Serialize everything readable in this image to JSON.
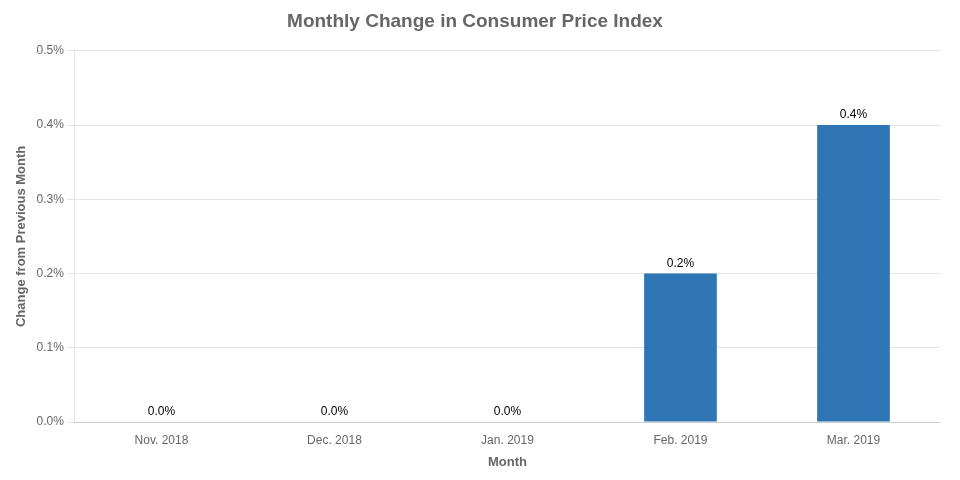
{
  "chart_data": {
    "type": "bar",
    "title": "Monthly Change in Consumer Price Index",
    "xlabel": "Month",
    "ylabel": "Change from Previous Month",
    "categories": [
      "Nov. 2018",
      "Dec. 2018",
      "Jan. 2019",
      "Feb. 2019",
      "Mar. 2019"
    ],
    "values": [
      0.0,
      0.0,
      0.0,
      0.002,
      0.004
    ],
    "value_labels": [
      "0.0%",
      "0.0%",
      "0.0%",
      "0.2%",
      "0.4%"
    ],
    "data_labels": true,
    "color": "#2E75B6",
    "ylim": [
      0,
      0.005
    ],
    "yticks": [
      {
        "value": 0.0,
        "label": "0.0%"
      },
      {
        "value": 0.001,
        "label": "0.1%"
      },
      {
        "value": 0.002,
        "label": "0.2%"
      },
      {
        "value": 0.003,
        "label": "0.3%"
      },
      {
        "value": 0.004,
        "label": "0.4%"
      },
      {
        "value": 0.005,
        "label": "0.5%"
      }
    ],
    "grid": true
  }
}
